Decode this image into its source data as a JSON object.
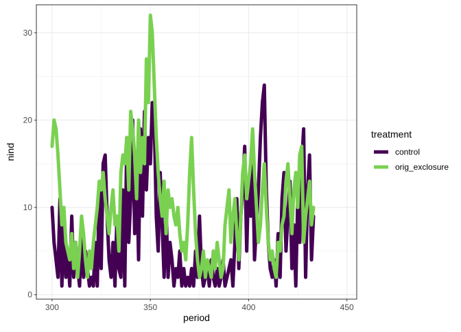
{
  "chart_data": {
    "type": "line",
    "title": "",
    "xlabel": "period",
    "ylabel": "nind",
    "xlim": [
      292,
      455
    ],
    "ylim": [
      -0.5,
      33.2
    ],
    "x_ticks": [
      300,
      350,
      400,
      450
    ],
    "y_ticks": [
      0,
      10,
      20,
      30
    ],
    "x_minor_ticks": [
      325,
      375,
      425
    ],
    "y_minor_ticks": [
      5,
      15,
      25
    ],
    "grid": true,
    "legend": {
      "title": "treatment",
      "position": "right"
    },
    "series": [
      {
        "name": "control",
        "color": "#440154",
        "x": [
          300,
          301,
          302,
          303,
          304,
          305,
          306,
          307,
          308,
          309,
          310,
          311,
          312,
          313,
          314,
          315,
          316,
          317,
          318,
          319,
          320,
          321,
          322,
          323,
          324,
          325,
          326,
          327,
          328,
          329,
          330,
          331,
          332,
          333,
          334,
          335,
          336,
          337,
          338,
          339,
          340,
          341,
          342,
          343,
          344,
          345,
          346,
          347,
          348,
          349,
          350,
          351,
          352,
          353,
          354,
          355,
          356,
          357,
          358,
          359,
          360,
          361,
          362,
          363,
          364,
          365,
          366,
          367,
          368,
          369,
          370,
          371,
          372,
          373,
          374,
          375,
          376,
          377,
          378,
          379,
          380,
          381,
          382,
          383,
          384,
          385,
          386,
          387,
          388,
          389,
          390,
          391,
          392,
          393,
          394,
          395,
          396,
          397,
          398,
          399,
          400,
          401,
          402,
          403,
          404,
          405,
          406,
          407,
          408,
          409,
          410,
          411,
          412,
          413,
          414,
          415,
          416,
          417,
          418,
          419,
          420,
          421,
          422,
          423,
          424,
          425,
          426,
          427,
          428,
          429,
          430,
          431,
          432,
          433
        ],
        "y": [
          10,
          6,
          4,
          2,
          11,
          1,
          8,
          2,
          5,
          1,
          9,
          2,
          6,
          3,
          1,
          7,
          2,
          5,
          3,
          1,
          2,
          1,
          6,
          1,
          12,
          3,
          15,
          16,
          9,
          4,
          2,
          6,
          1,
          9,
          3,
          2,
          12,
          1,
          18,
          6,
          11,
          20,
          7,
          15,
          4,
          19,
          9,
          21,
          12,
          18,
          15,
          22,
          20,
          9,
          5,
          14,
          8,
          2,
          10,
          2,
          6,
          4,
          1,
          3,
          2,
          5,
          1,
          3,
          1,
          2,
          1,
          3,
          1,
          5,
          2,
          9,
          3,
          1,
          2,
          3,
          1,
          4,
          2,
          1,
          3,
          1,
          2,
          4,
          1,
          2,
          3,
          4,
          1,
          6,
          11,
          3,
          9,
          12,
          17,
          5,
          13,
          9,
          16,
          4,
          8,
          12,
          18,
          22,
          24,
          12,
          6,
          3,
          2,
          4,
          1,
          7,
          2,
          11,
          14,
          5,
          9,
          13,
          3,
          8,
          1,
          11,
          6,
          15,
          19,
          2,
          12,
          16,
          4,
          9
        ]
      },
      {
        "name": "orig_exclosure",
        "color": "#7AD151",
        "x": [
          300,
          301,
          302,
          303,
          304,
          305,
          306,
          307,
          308,
          309,
          310,
          311,
          312,
          313,
          314,
          315,
          316,
          317,
          318,
          319,
          320,
          321,
          322,
          323,
          324,
          325,
          326,
          327,
          328,
          329,
          330,
          331,
          332,
          333,
          334,
          335,
          336,
          337,
          338,
          339,
          340,
          341,
          342,
          343,
          344,
          345,
          346,
          347,
          348,
          349,
          350,
          351,
          352,
          353,
          354,
          355,
          356,
          357,
          358,
          359,
          360,
          361,
          362,
          363,
          364,
          365,
          366,
          367,
          368,
          369,
          370,
          371,
          372,
          373,
          374,
          375,
          376,
          377,
          378,
          379,
          380,
          381,
          382,
          383,
          384,
          385,
          386,
          387,
          388,
          389,
          390,
          391,
          392,
          393,
          394,
          395,
          396,
          397,
          398,
          399,
          400,
          401,
          402,
          403,
          404,
          405,
          406,
          407,
          408,
          409,
          410,
          411,
          412,
          413,
          414,
          415,
          416,
          417,
          418,
          419,
          420,
          421,
          422,
          423,
          424,
          425,
          426,
          427,
          428,
          429,
          430,
          431,
          432,
          433
        ],
        "y": [
          17,
          20,
          19,
          16,
          12,
          8,
          10,
          6,
          5,
          4,
          7,
          3,
          6,
          2,
          5,
          9,
          7,
          4,
          2,
          5,
          3,
          6,
          8,
          10,
          13,
          12,
          14,
          11,
          9,
          7,
          10,
          12,
          8,
          9,
          5,
          14,
          16,
          15,
          18,
          12,
          21,
          19,
          16,
          11,
          20,
          14,
          18,
          15,
          27,
          22,
          32,
          30,
          24,
          18,
          14,
          11,
          9,
          13,
          7,
          12,
          10,
          11,
          9,
          8,
          10,
          7,
          5,
          6,
          4,
          8,
          14,
          18,
          12,
          7,
          4,
          2,
          3,
          5,
          2,
          4,
          3,
          2,
          5,
          3,
          6,
          4,
          2,
          3,
          8,
          10,
          12,
          6,
          9,
          11,
          7,
          4,
          9,
          14,
          16,
          11,
          13,
          15,
          19,
          14,
          10,
          6,
          8,
          12,
          15,
          10,
          6,
          4,
          5,
          3,
          2,
          6,
          5,
          8,
          9,
          13,
          15,
          11,
          7,
          12,
          14,
          10,
          16,
          17,
          6,
          9,
          11,
          13,
          8,
          10
        ]
      }
    ]
  }
}
